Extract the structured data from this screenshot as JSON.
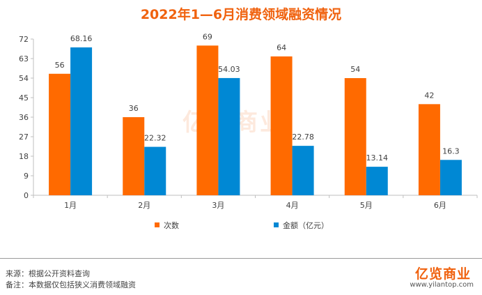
{
  "title": "2022年1—6月消费领域融资情况",
  "chart_data": {
    "type": "bar",
    "title": "2022年1—6月消费领域融资情况",
    "categories": [
      "1月",
      "2月",
      "3月",
      "4月",
      "5月",
      "6月"
    ],
    "series": [
      {
        "name": "次数",
        "color": "#ff6a00",
        "values": [
          56,
          36,
          69,
          64,
          54,
          42
        ],
        "labels": [
          "56",
          "36",
          "69",
          "64",
          "54",
          "42"
        ]
      },
      {
        "name": "金额（亿元）",
        "color": "#0088d4",
        "values": [
          68.16,
          22.32,
          54.03,
          22.78,
          13.14,
          16.3
        ],
        "labels": [
          "68.16",
          "22.32",
          "54.03",
          "22.78",
          "13.14",
          "16.3"
        ]
      }
    ],
    "ylim": [
      0,
      72
    ],
    "yticks": [
      "0",
      "9",
      "18",
      "27",
      "36",
      "45",
      "54",
      "63",
      "72"
    ],
    "grid": false,
    "legend_position": "bottom"
  },
  "footer": {
    "source": "来源：根据公开资料查询",
    "note": "备注：本数据仅包括狭义消费领域融资",
    "brand": "亿览商业",
    "url": "www.yilantop.com",
    "watermark": "亿览商业"
  }
}
